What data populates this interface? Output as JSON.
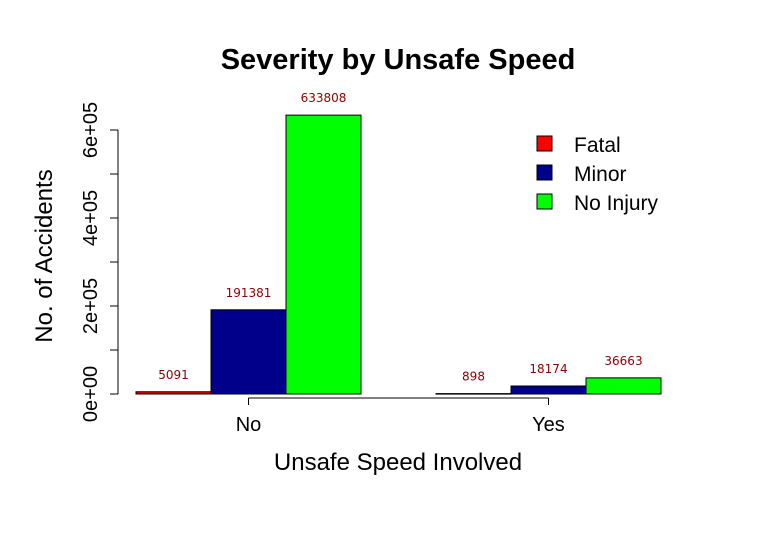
{
  "chart_data": {
    "type": "bar",
    "title": "Severity by Unsafe Speed",
    "xlabel": "Unsafe Speed Involved",
    "ylabel": "No. of Accidents",
    "categories": [
      "No",
      "Yes"
    ],
    "series": [
      {
        "name": "Fatal",
        "color": "#FF0000",
        "values": [
          5091,
          898
        ]
      },
      {
        "name": "Minor",
        "color": "#00008B",
        "values": [
          191381,
          18174
        ]
      },
      {
        "name": "No Injury",
        "color": "#00FF00",
        "values": [
          633808,
          36663
        ]
      }
    ],
    "data_labels": [
      [
        "5091",
        "898"
      ],
      [
        "191381",
        "18174"
      ],
      [
        "633808",
        "36663"
      ]
    ],
    "ylim": [
      0,
      650000
    ],
    "yticks": [
      0,
      100000,
      200000,
      300000,
      400000,
      500000,
      600000
    ],
    "ytick_labels": [
      "0e+00",
      "",
      "2e+05",
      "",
      "4e+05",
      "",
      "6e+05"
    ],
    "grid": false,
    "legend_position": "top-right"
  }
}
